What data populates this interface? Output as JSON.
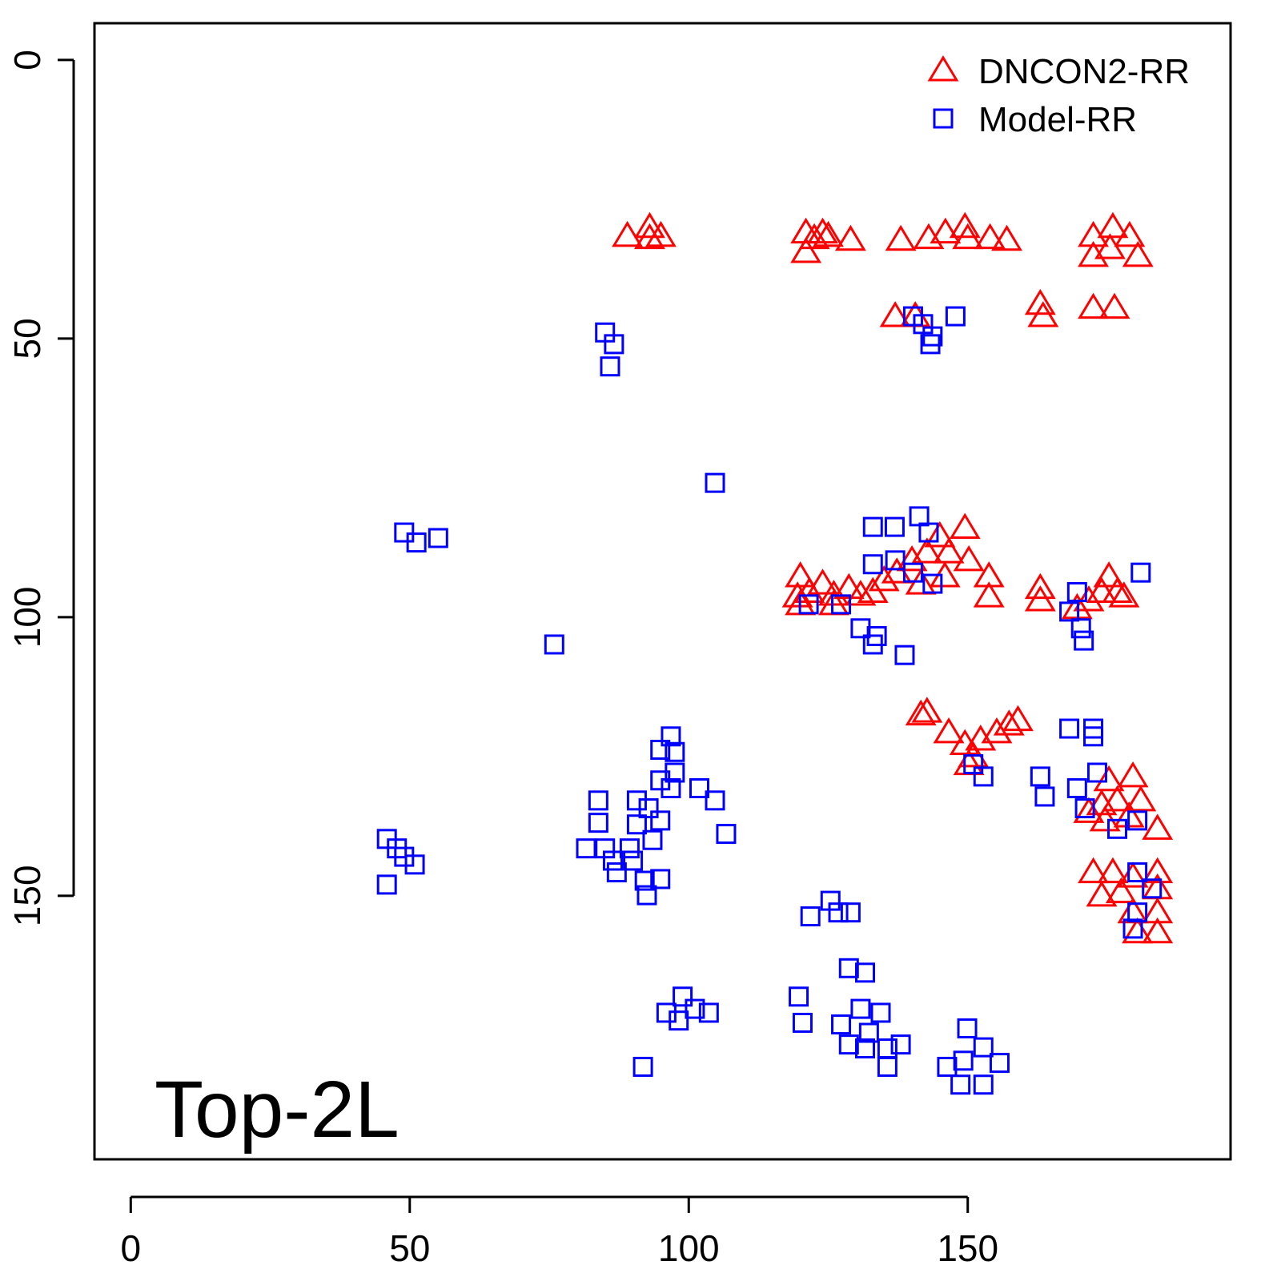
{
  "chart_data": {
    "type": "scatter",
    "annotation": "Top-2L",
    "legend": "top-right",
    "xlim": [
      -6.5,
      197.1
    ],
    "ylim": [
      197.3,
      -6.6
    ],
    "xticks": [
      0,
      50,
      100,
      150
    ],
    "yticks": [
      0,
      50,
      100,
      150
    ],
    "series": [
      {
        "name": "DNCON2-RR",
        "color": "#ff0000",
        "marker": "triangle",
        "x": [
          89,
          93,
          95,
          93,
          121,
          122.5,
          124,
          121,
          125,
          129,
          138,
          143,
          146,
          149.5,
          150,
          154,
          157,
          172.5,
          176,
          175.5,
          179,
          180.5,
          172.5,
          137,
          140.6,
          163,
          163.5,
          172.5,
          176.3,
          120,
          121.6,
          124,
          126,
          128.7,
          130.8,
          133,
          135,
          137.3,
          140,
          142.7,
          145,
          146.6,
          149.5,
          150.2,
          153.8,
          153.8,
          145.9,
          141.6,
          119.5,
          120,
          126,
          163,
          163,
          169.6,
          171.7,
          174,
          175.3,
          176.8,
          178,
          141.6,
          142.7,
          146.6,
          149.5,
          151,
          152.3,
          155.2,
          157.4,
          159,
          150.2,
          175.3,
          179.6,
          171.7,
          174,
          176.8,
          174.6,
          178.9,
          184,
          181,
          172.5,
          176,
          179.6,
          184,
          174,
          177.5,
          184,
          179.6,
          184,
          180.4,
          184
        ],
        "y": [
          31.6,
          30,
          31.6,
          32,
          31,
          32,
          31,
          34.5,
          31.6,
          32.3,
          32.3,
          32,
          31,
          30,
          32,
          32,
          32.3,
          31.6,
          30,
          33.8,
          31.6,
          35.2,
          35.2,
          46,
          46,
          43.8,
          46,
          44.5,
          44.5,
          92.7,
          95.5,
          94,
          96,
          94.8,
          96,
          95.5,
          93.4,
          92,
          89.8,
          88.4,
          85.5,
          88.4,
          84,
          89.8,
          92.7,
          96.3,
          92.7,
          94,
          96.3,
          97.7,
          97.7,
          94.8,
          97,
          98.4,
          97,
          95.5,
          92.7,
          95.5,
          96.3,
          117.5,
          117,
          120.7,
          122.8,
          125,
          122,
          120.7,
          119.3,
          118.5,
          126.4,
          129.3,
          128.6,
          135,
          133.6,
          132.9,
          136.5,
          135.8,
          138,
          132.9,
          145.8,
          145.8,
          146.6,
          145.8,
          150,
          149.4,
          148.7,
          153,
          153,
          156.6,
          156.6
        ]
      },
      {
        "name": "Model-RR",
        "color": "#0000ff",
        "marker": "square",
        "x": [
          85,
          86.6,
          85.9,
          140.2,
          142,
          143.7,
          147.8,
          143.3,
          104.7,
          49,
          51.2,
          55.1,
          75.9,
          133,
          136.9,
          141.3,
          143,
          133,
          137,
          140.2,
          143.7,
          121.5,
          127.3,
          130.8,
          133.7,
          133,
          138.7,
          181,
          168.2,
          170.3,
          170.8,
          169.6,
          168.2,
          172.5,
          172.5,
          151,
          152.8,
          163,
          163.8,
          169.6,
          173.2,
          171,
          176.8,
          180.4,
          180.4,
          183,
          179.6,
          180.4,
          45.9,
          47.7,
          49,
          50.9,
          45.9,
          96.8,
          97.5,
          94.9,
          97.5,
          96.8,
          94.9,
          101.9,
          104.7,
          106.7,
          83.8,
          83.8,
          81.6,
          85,
          86.4,
          87.1,
          90.7,
          90.7,
          92.8,
          93.5,
          94.9,
          90,
          92.1,
          92.5,
          94.9,
          89.4,
          121.8,
          125.4,
          126.8,
          129,
          128.7,
          131.6,
          119.7,
          120.4,
          127.3,
          130.8,
          134.4,
          132.3,
          128.7,
          135.6,
          138,
          135.6,
          131.6,
          98.9,
          98.2,
          96,
          101.1,
          103.6,
          91.8,
          149.9,
          146.3,
          148.7,
          152.8,
          152.8,
          155.7,
          149.2
        ],
        "y": [
          48.9,
          51,
          55,
          46,
          47.4,
          49.6,
          46,
          51,
          75.9,
          84.8,
          86.6,
          85.8,
          104.9,
          83.8,
          83.8,
          81.9,
          84.8,
          90.5,
          89.8,
          92,
          94,
          97.7,
          97.7,
          102,
          103.4,
          104.9,
          106.8,
          92,
          99,
          102,
          104.2,
          95.5,
          120,
          120,
          121.4,
          126.4,
          128.6,
          128.6,
          132.2,
          130.7,
          127.9,
          134.3,
          138,
          136.5,
          145.8,
          148.7,
          155.9,
          153,
          139.8,
          141.5,
          143,
          144.4,
          148,
          121.4,
          124.2,
          123.8,
          127.9,
          130.7,
          129.3,
          130.7,
          132.9,
          138.9,
          132.9,
          136.9,
          141.5,
          141.5,
          143.7,
          145.8,
          132.9,
          137.2,
          134.3,
          140,
          136.5,
          143.7,
          147.3,
          149.9,
          147,
          141.5,
          153.7,
          150.9,
          153,
          153,
          163,
          163.8,
          168.1,
          172.8,
          173.1,
          170.3,
          171,
          174.6,
          176.7,
          177.4,
          176.7,
          180.7,
          177.4,
          168.1,
          172.4,
          171,
          170.3,
          171,
          180.7,
          173.8,
          180.7,
          183.9,
          183.9,
          177.2,
          180,
          179.6
        ]
      }
    ]
  }
}
